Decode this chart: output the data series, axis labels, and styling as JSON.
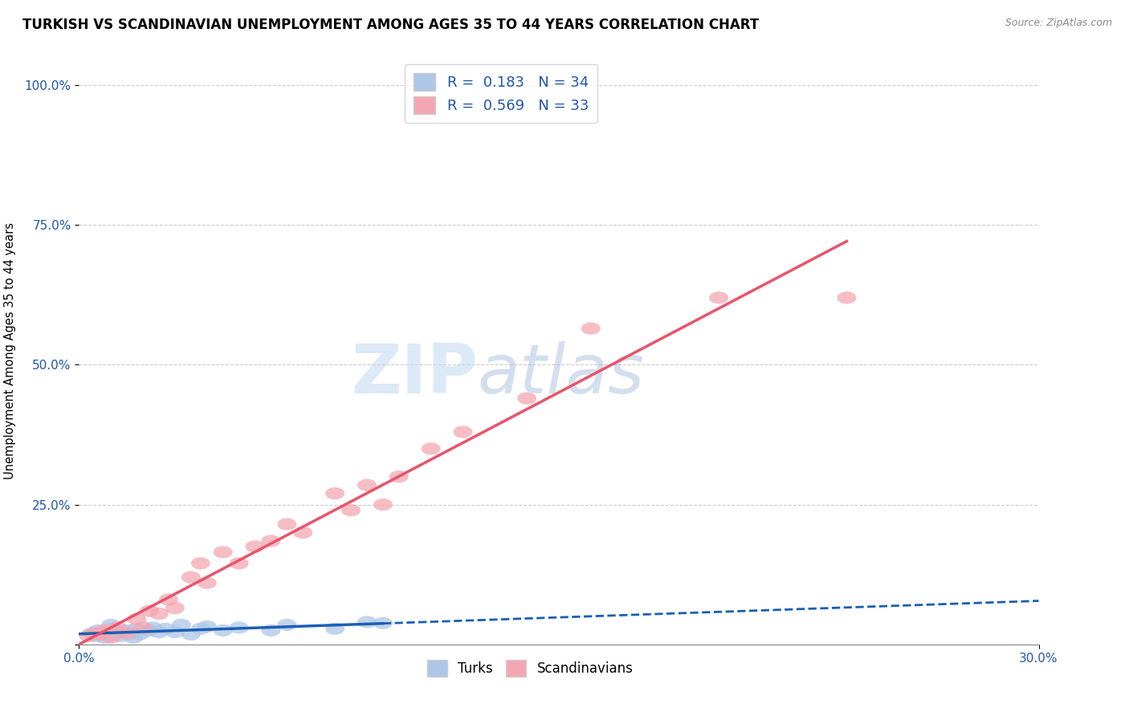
{
  "title": "TURKISH VS SCANDINAVIAN UNEMPLOYMENT AMONG AGES 35 TO 44 YEARS CORRELATION CHART",
  "source": "Source: ZipAtlas.com",
  "ylabel": "Unemployment Among Ages 35 to 44 years",
  "xlim": [
    0.0,
    0.3
  ],
  "ylim": [
    0.0,
    1.05
  ],
  "xticklabels": [
    "0.0%",
    "30.0%"
  ],
  "ytick_positions": [
    0.0,
    0.25,
    0.5,
    0.75,
    1.0
  ],
  "ytick_labels": [
    "",
    "25.0%",
    "50.0%",
    "75.0%",
    "100.0%"
  ],
  "turks_R": 0.183,
  "turks_N": 34,
  "scands_R": 0.569,
  "scands_N": 33,
  "turks_color": "#aec6e8",
  "scands_color": "#f4a7b2",
  "turks_line_color": "#1a5fb4",
  "scands_line_color": "#e8546a",
  "background_color": "#ffffff",
  "grid_color": "#cccccc",
  "turks_x": [
    0.004,
    0.005,
    0.006,
    0.007,
    0.008,
    0.009,
    0.01,
    0.01,
    0.01,
    0.011,
    0.012,
    0.013,
    0.014,
    0.015,
    0.016,
    0.017,
    0.018,
    0.019,
    0.022,
    0.023,
    0.025,
    0.027,
    0.03,
    0.032,
    0.035,
    0.038,
    0.04,
    0.045,
    0.05,
    0.06,
    0.065,
    0.08,
    0.09,
    0.095
  ],
  "turks_y": [
    0.02,
    0.015,
    0.025,
    0.018,
    0.012,
    0.022,
    0.015,
    0.028,
    0.035,
    0.018,
    0.022,
    0.015,
    0.02,
    0.025,
    0.018,
    0.012,
    0.028,
    0.018,
    0.025,
    0.03,
    0.022,
    0.028,
    0.022,
    0.035,
    0.018,
    0.028,
    0.032,
    0.025,
    0.03,
    0.025,
    0.035,
    0.028,
    0.04,
    0.038
  ],
  "scands_x": [
    0.003,
    0.005,
    0.007,
    0.008,
    0.01,
    0.012,
    0.015,
    0.018,
    0.02,
    0.022,
    0.025,
    0.028,
    0.03,
    0.035,
    0.038,
    0.04,
    0.045,
    0.05,
    0.055,
    0.06,
    0.065,
    0.07,
    0.08,
    0.085,
    0.09,
    0.095,
    0.1,
    0.11,
    0.12,
    0.14,
    0.16,
    0.2,
    0.24
  ],
  "scands_y": [
    0.015,
    0.02,
    0.018,
    0.025,
    0.012,
    0.03,
    0.02,
    0.045,
    0.03,
    0.06,
    0.055,
    0.08,
    0.065,
    0.12,
    0.145,
    0.11,
    0.165,
    0.145,
    0.175,
    0.185,
    0.215,
    0.2,
    0.27,
    0.24,
    0.285,
    0.25,
    0.3,
    0.35,
    0.38,
    0.44,
    0.565,
    0.62,
    0.62
  ],
  "watermark_zip": "ZIP",
  "watermark_atlas": "atlas",
  "title_fontsize": 12,
  "label_fontsize": 10.5,
  "tick_fontsize": 11,
  "legend_fontsize": 13
}
